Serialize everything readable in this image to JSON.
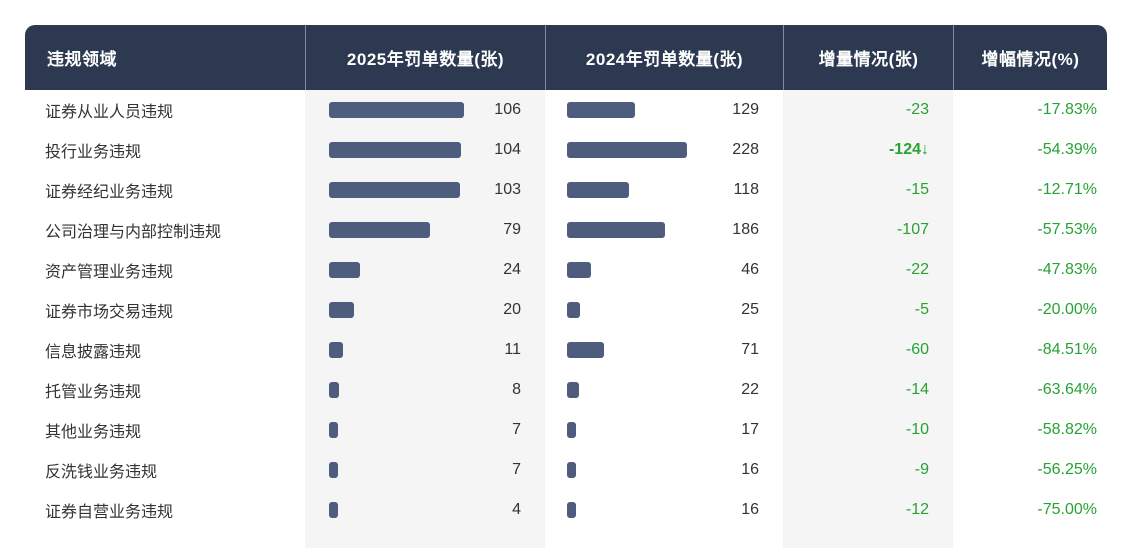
{
  "table": {
    "columns": [
      {
        "label": "违规领域"
      },
      {
        "label": "2025年罚单数量(张)"
      },
      {
        "label": "2024年罚单数量(张)"
      },
      {
        "label": "增量情况(张)"
      },
      {
        "label": "增幅情况(%)"
      }
    ],
    "rows": [
      {
        "area": "证券从业人员违规",
        "y2025": 106,
        "y2024": 129,
        "delta": "-23",
        "down_arrow": false,
        "pct": "-17.83%"
      },
      {
        "area": "投行业务违规",
        "y2025": 104,
        "y2024": 228,
        "delta": "-124",
        "down_arrow": true,
        "pct": "-54.39%"
      },
      {
        "area": "证券经纪业务违规",
        "y2025": 103,
        "y2024": 118,
        "delta": "-15",
        "down_arrow": false,
        "pct": "-12.71%"
      },
      {
        "area": "公司治理与内部控制违规",
        "y2025": 79,
        "y2024": 186,
        "delta": "-107",
        "down_arrow": false,
        "pct": "-57.53%"
      },
      {
        "area": "资产管理业务违规",
        "y2025": 24,
        "y2024": 46,
        "delta": "-22",
        "down_arrow": false,
        "pct": "-47.83%"
      },
      {
        "area": "证券市场交易违规",
        "y2025": 20,
        "y2024": 25,
        "delta": "-5",
        "down_arrow": false,
        "pct": "-20.00%"
      },
      {
        "area": "信息披露违规",
        "y2025": 11,
        "y2024": 71,
        "delta": "-60",
        "down_arrow": false,
        "pct": "-84.51%"
      },
      {
        "area": "托管业务违规",
        "y2025": 8,
        "y2024": 22,
        "delta": "-14",
        "down_arrow": false,
        "pct": "-63.64%"
      },
      {
        "area": "其他业务违规",
        "y2025": 7,
        "y2024": 17,
        "delta": "-10",
        "down_arrow": false,
        "pct": "-58.82%"
      },
      {
        "area": "反洗钱业务违规",
        "y2025": 7,
        "y2024": 16,
        "delta": "-9",
        "down_arrow": false,
        "pct": "-56.25%"
      },
      {
        "area": "证券自营业务违规",
        "y2025": 4,
        "y2024": 16,
        "delta": "-12",
        "down_arrow": false,
        "pct": "-75.00%"
      }
    ]
  },
  "colors": {
    "header_bg": "#2c3950",
    "bar": "#4e5d7e",
    "negative_green": "#27a234",
    "stripe_bg": "#f5f5f5",
    "text": "#333333"
  },
  "icons": {
    "down_arrow": "↓"
  },
  "chart_data": {
    "type": "table",
    "columns": [
      "违规领域",
      "2025年罚单数量(张)",
      "2024年罚单数量(张)",
      "增量情况(张)",
      "增幅情况(%)"
    ],
    "categories": [
      "证券从业人员违规",
      "投行业务违规",
      "证券经纪业务违规",
      "公司治理与内部控制违规",
      "资产管理业务违规",
      "证券市场交易违规",
      "信息披露违规",
      "托管业务违规",
      "其他业务违规",
      "反洗钱业务违规",
      "证券自营业务违规"
    ],
    "series": [
      {
        "name": "2025年罚单数量(张)",
        "display": "bar",
        "values": [
          106,
          104,
          103,
          79,
          24,
          20,
          11,
          8,
          7,
          7,
          4
        ]
      },
      {
        "name": "2024年罚单数量(张)",
        "display": "bar",
        "values": [
          129,
          228,
          118,
          186,
          46,
          25,
          71,
          22,
          17,
          16,
          16
        ]
      },
      {
        "name": "增量情况(张)",
        "display": "text-green",
        "values": [
          -23,
          -124,
          -15,
          -107,
          -22,
          -5,
          -60,
          -14,
          -10,
          -9,
          -12
        ]
      },
      {
        "name": "增幅情况(%)",
        "display": "text-green",
        "values": [
          "-17.83%",
          "-54.39%",
          "-12.71%",
          "-57.53%",
          "-47.83%",
          "-20.00%",
          "-84.51%",
          "-63.64%",
          "-58.82%",
          "-56.25%",
          "-75.00%"
        ]
      }
    ],
    "annotations": [
      "-124 entry shown bold with down arrow ↓"
    ],
    "layout": {
      "bars_normalized_per_column": true,
      "negative_color": "#27a234",
      "bar_color": "#4e5d7e",
      "legend": "none",
      "grid": "off"
    }
  }
}
